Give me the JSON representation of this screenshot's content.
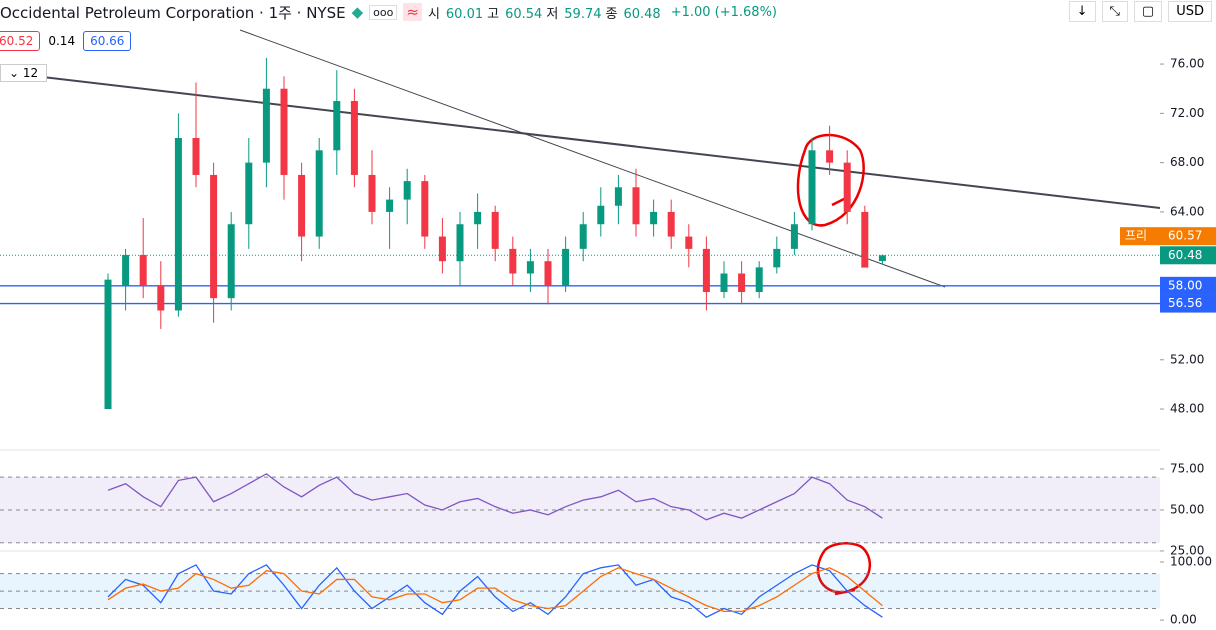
{
  "header": {
    "title": "Occidental Petroleum Corporation · 1주 · NYSE",
    "ohlc": [
      {
        "label": "시",
        "value": "60.01"
      },
      {
        "label": "고",
        "value": "60.54"
      },
      {
        "label": "저",
        "value": "59.74"
      },
      {
        "label": "종",
        "value": "60.48"
      }
    ],
    "change": "+1.00 (+1.68%)",
    "currency": "USD"
  },
  "indicators": {
    "values": [
      "60.52",
      "0.14",
      "60.66"
    ],
    "length": "12"
  },
  "chart_data": {
    "type": "candlestick",
    "open": [
      48,
      58,
      60.5,
      58,
      56,
      70,
      67,
      57,
      63,
      68,
      74,
      67,
      62,
      69,
      73,
      67,
      64,
      65,
      66.5,
      62,
      60,
      63,
      64,
      61,
      59,
      60,
      58,
      61,
      63,
      64.5,
      66,
      63,
      64,
      62,
      61,
      57.5,
      59,
      57.5,
      59.5,
      61,
      63,
      69,
      68,
      64,
      60.01
    ],
    "high": [
      59,
      61,
      63.5,
      60,
      72,
      74.5,
      68,
      64,
      70,
      76.5,
      75,
      68,
      70,
      75.5,
      74,
      69,
      66,
      67.5,
      67,
      63.5,
      64,
      65.5,
      64.5,
      62,
      61,
      61,
      62,
      64,
      66,
      67,
      67.5,
      65,
      65,
      63,
      62,
      60,
      60,
      60,
      62,
      64,
      70,
      71,
      69,
      64.5,
      60.54
    ],
    "low": [
      48,
      56,
      57,
      54.5,
      55.5,
      66,
      55,
      56,
      61,
      66,
      65,
      60,
      61,
      67,
      66,
      63,
      61,
      63,
      61,
      59,
      58,
      61,
      60,
      58,
      57.5,
      56.5,
      57.5,
      60,
      62,
      63,
      62,
      62,
      61,
      59.5,
      56,
      57,
      56.5,
      57,
      59,
      60.5,
      62.5,
      67,
      63,
      59.5,
      59.74
    ],
    "close": [
      58.5,
      60.5,
      58,
      56,
      70,
      67,
      57,
      63,
      68,
      74,
      67,
      62,
      69,
      73,
      67,
      64,
      65,
      66.5,
      62,
      60,
      63,
      64,
      61,
      59,
      60,
      58,
      61,
      63,
      64.5,
      66,
      63,
      64,
      62,
      61,
      57.5,
      59,
      57.5,
      59.5,
      61,
      63,
      69,
      68,
      64,
      59.48,
      60.48
    ],
    "ylim": [
      45,
      81.2
    ],
    "yticks": [
      {
        "value": 76,
        "label": "76.00"
      },
      {
        "value": 72,
        "label": "72.00"
      },
      {
        "value": 68,
        "label": "68.00"
      },
      {
        "value": 64,
        "label": "64.00"
      },
      {
        "value": 52,
        "label": "52.00"
      },
      {
        "value": 48,
        "label": "48.00"
      }
    ],
    "price_lines": [
      {
        "value": 58,
        "label": "58.00"
      },
      {
        "value": 56.56,
        "label": "56.56"
      }
    ],
    "last_price": {
      "value": 60.48,
      "label": "60.48"
    },
    "pre_market": {
      "tag": "프리",
      "value": 60.57,
      "label": "60.57"
    },
    "up_color": "#089981",
    "down_color": "#f23645"
  },
  "rsi_chart": {
    "type": "line",
    "values": [
      62,
      66,
      58,
      52,
      68,
      70,
      55,
      60,
      66,
      72,
      64,
      58,
      65,
      70,
      60,
      56,
      58,
      60,
      53,
      50,
      55,
      57,
      52,
      48,
      50,
      47,
      52,
      56,
      58,
      62,
      55,
      57,
      52,
      50,
      44,
      48,
      45,
      50,
      55,
      60,
      70,
      66,
      56,
      52,
      45
    ],
    "color": "#7e57c2",
    "ylim": [
      26.8,
      83.5
    ],
    "yticks": [
      {
        "value": 75,
        "label": "75.00"
      },
      {
        "value": 50,
        "label": "50.00"
      },
      {
        "value": 25,
        "label": "25.00"
      }
    ],
    "levels": [
      70,
      50,
      30
    ]
  },
  "stoch_chart": {
    "type": "line",
    "series": [
      {
        "color": "#2962ff",
        "values": [
          40,
          70,
          60,
          30,
          80,
          95,
          50,
          45,
          80,
          95,
          60,
          20,
          60,
          90,
          50,
          20,
          40,
          60,
          30,
          10,
          50,
          75,
          40,
          15,
          30,
          10,
          40,
          80,
          90,
          95,
          60,
          70,
          40,
          30,
          5,
          20,
          10,
          40,
          60,
          80,
          95,
          85,
          50,
          25,
          5
        ]
      },
      {
        "color": "#ff6d00",
        "values": [
          35,
          55,
          62,
          50,
          55,
          80,
          70,
          55,
          60,
          85,
          80,
          50,
          45,
          70,
          70,
          40,
          35,
          45,
          45,
          30,
          35,
          55,
          55,
          35,
          25,
          20,
          25,
          50,
          75,
          90,
          80,
          70,
          55,
          40,
          25,
          15,
          15,
          25,
          40,
          60,
          80,
          90,
          75,
          50,
          25
        ]
      }
    ],
    "ylim": [
      -17,
      115.5
    ],
    "yticks": [
      {
        "value": 100,
        "label": "100.00"
      },
      {
        "value": 0,
        "label": "0.00"
      }
    ],
    "levels": [
      80,
      50,
      20
    ]
  }
}
